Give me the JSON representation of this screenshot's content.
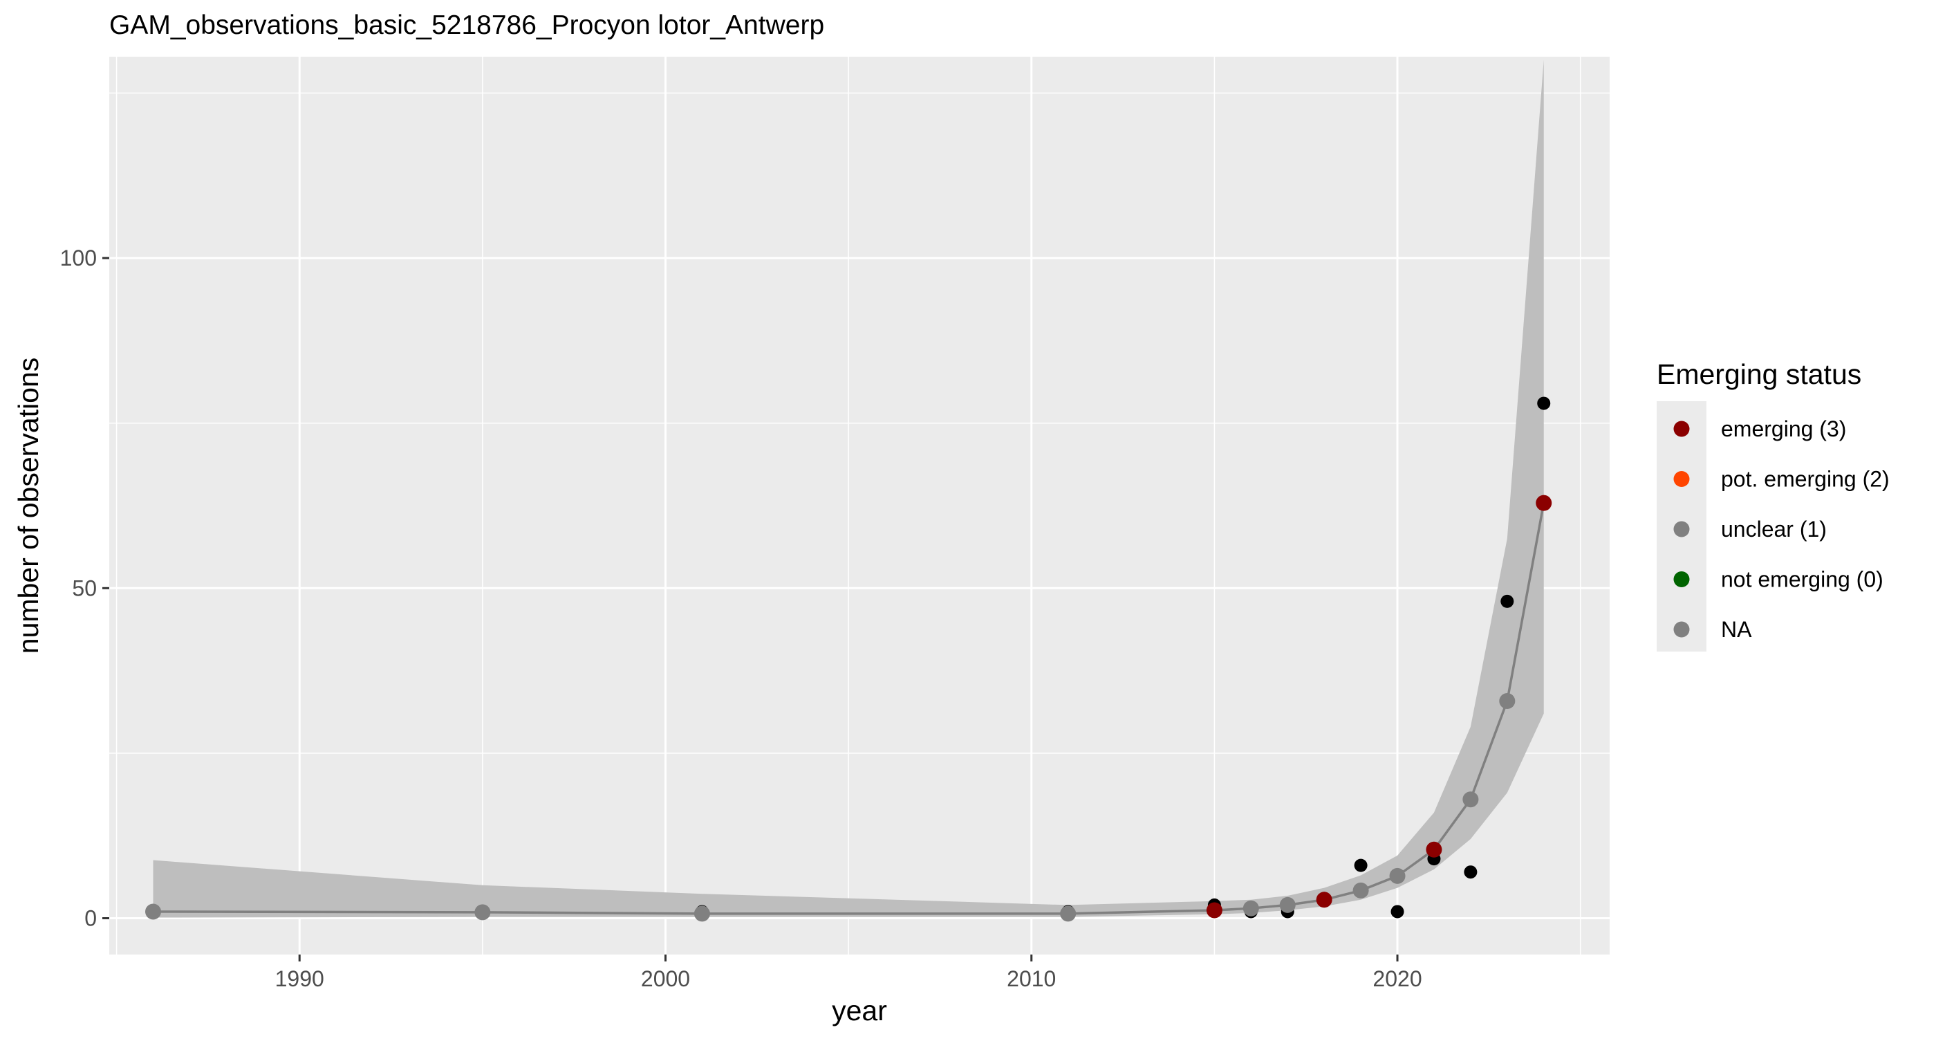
{
  "chart_data": {
    "type": "line",
    "title": "GAM_observations_basic_5218786_Procyon lotor_Antwerp",
    "xlabel": "year",
    "ylabel": "number of observations",
    "xlim": [
      1984.8,
      2025.8
    ],
    "ylim": [
      -5.5,
      130.5
    ],
    "x_ticks": [
      1990,
      2000,
      2010,
      2020
    ],
    "x_tick_labels": [
      "1990",
      "2000",
      "2010",
      "2020"
    ],
    "x_minor_ticks": [
      1985,
      1995,
      2005,
      2015,
      2025
    ],
    "y_ticks": [
      0,
      50,
      100
    ],
    "y_tick_labels": [
      "0",
      "50",
      "100"
    ],
    "y_minor_ticks": [
      25,
      75,
      125
    ],
    "grid": true,
    "legend_position": "right",
    "legend": {
      "title": "Emerging status",
      "entries": [
        {
          "label": "emerging (3)",
          "color": "#8B0000"
        },
        {
          "label": "pot. emerging (2)",
          "color": "#FF4500"
        },
        {
          "label": "unclear (1)",
          "color": "#808080"
        },
        {
          "label": "not emerging (0)",
          "color": "#006400"
        },
        {
          "label": "NA",
          "color": "#808080"
        }
      ]
    },
    "colors": {
      "panel_background": "#EBEBEB",
      "grid": "#FFFFFF",
      "ribbon": "#BEBEBE",
      "fit_line": "#808080",
      "observed": "#000000"
    },
    "fit": {
      "x": [
        1986,
        1995,
        2001,
        2011,
        2015,
        2016,
        2017,
        2018,
        2019,
        2020,
        2021,
        2022,
        2023,
        2024
      ],
      "y": [
        1.0,
        0.9,
        0.7,
        0.7,
        1.2,
        1.5,
        2.0,
        2.8,
        4.2,
        6.4,
        10.4,
        18.0,
        32.9,
        62.9
      ],
      "lower": [
        0.1,
        0.2,
        0.2,
        0.2,
        0.6,
        0.8,
        1.2,
        1.8,
        2.8,
        4.6,
        7.4,
        12.0,
        19.0,
        31.0
      ],
      "upper": [
        8.8,
        5.0,
        3.7,
        2.0,
        2.6,
        2.8,
        3.4,
        4.6,
        6.5,
        9.5,
        16.0,
        29.0,
        57.5,
        130.0
      ],
      "status": [
        "unclear (1)",
        "unclear (1)",
        "unclear (1)",
        "unclear (1)",
        "emerging (3)",
        "unclear (1)",
        "unclear (1)",
        "emerging (3)",
        "unclear (1)",
        "unclear (1)",
        "emerging (3)",
        "unclear (1)",
        "unclear (1)",
        "emerging (3)"
      ]
    },
    "observed": {
      "x": [
        1986,
        1995,
        2001,
        2011,
        2015,
        2016,
        2017,
        2018,
        2019,
        2020,
        2021,
        2022,
        2023,
        2024
      ],
      "y": [
        1,
        1,
        1,
        1,
        2,
        1,
        1,
        3,
        8,
        1,
        9,
        7,
        48,
        78
      ]
    }
  }
}
